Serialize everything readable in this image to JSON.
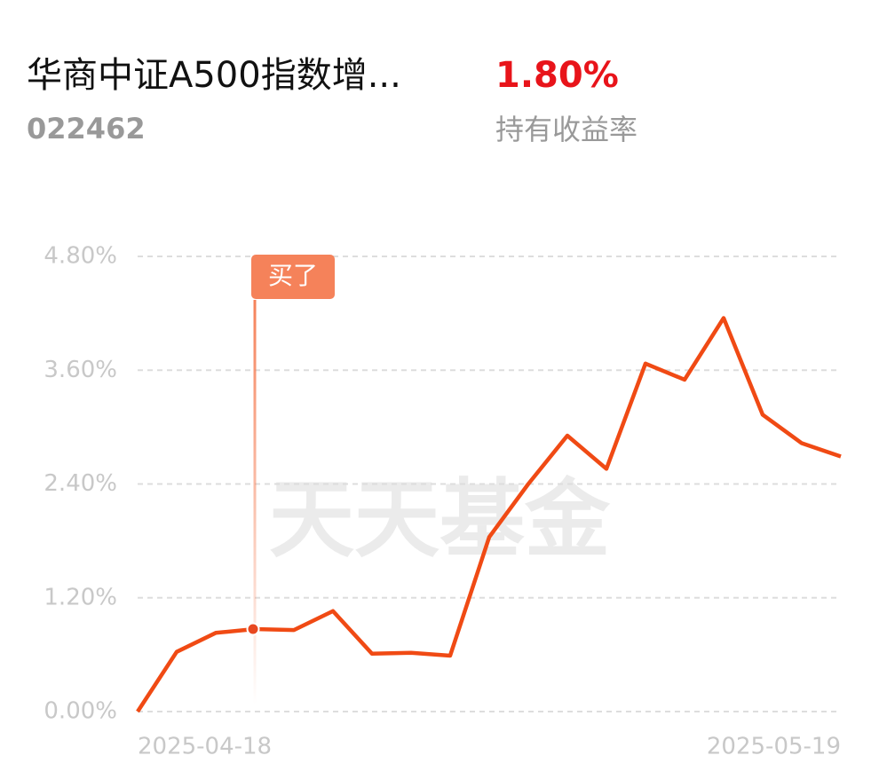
{
  "header": {
    "title": "华商中证A500指数增...",
    "code": "022462",
    "return_value": "1.80%",
    "return_label": "持有收益率"
  },
  "watermark": "天天基金",
  "chart_data": {
    "type": "line",
    "categories": [
      "2025-04-18",
      null,
      null,
      null,
      null,
      null,
      null,
      null,
      null,
      null,
      null,
      null,
      null,
      null,
      null,
      null,
      null,
      null,
      "2025-05-19"
    ],
    "series": [
      {
        "color": "#f04a14",
        "values": [
          0,
          0.63,
          0.83,
          0.87,
          0.86,
          1.06,
          0.61,
          0.62,
          0.59,
          1.84,
          2.4,
          2.91,
          2.56,
          3.67,
          3.5,
          4.15,
          3.13,
          2.83,
          2.69
        ]
      }
    ],
    "ylim": [
      0,
      4.8
    ],
    "yticks": [
      {
        "value": 0,
        "label": "0.00%"
      },
      {
        "value": 1.2,
        "label": "1.20%"
      },
      {
        "value": 2.4,
        "label": "2.40%"
      },
      {
        "value": 3.6,
        "label": "3.60%"
      },
      {
        "value": 4.8,
        "label": "4.80%"
      }
    ],
    "grid": true,
    "annotations": [
      {
        "point": 3,
        "text": "买了"
      }
    ]
  }
}
